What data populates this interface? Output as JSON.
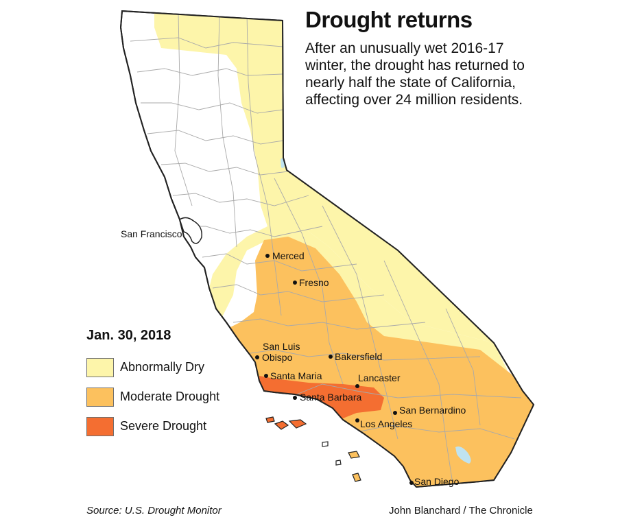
{
  "title": "Drought returns",
  "subtitle": "After an unusually wet 2016-17 winter, the drought has returned to nearly half the state of California, affecting over 24 million residents.",
  "legend": {
    "date": "Jan. 30, 2018",
    "items": [
      {
        "label": "Abnormally Dry",
        "color": "#fdf5aa"
      },
      {
        "label": "Moderate Drought",
        "color": "#fcc15e"
      },
      {
        "label": "Severe Drought",
        "color": "#f46e31"
      }
    ]
  },
  "cities": {
    "san_francisco": "San Francisco",
    "merced": "Merced",
    "fresno": "Fresno",
    "san_luis_1": "San Luis",
    "san_luis_2": "Obispo",
    "bakersfield": "Bakersfield",
    "santa_maria": "Santa Maria",
    "lancaster": "Lancaster",
    "santa_barbara": "Santa Barbara",
    "san_bernardino": "San Bernardino",
    "los_angeles": "Los Angeles",
    "san_diego": "San Diego"
  },
  "colors": {
    "no_drought": "#ffffff",
    "water": "#bfe3f0",
    "outline": "#222222"
  },
  "source": "Source: U.S. Drought Monitor",
  "credit": "John Blanchard / The Chronicle"
}
